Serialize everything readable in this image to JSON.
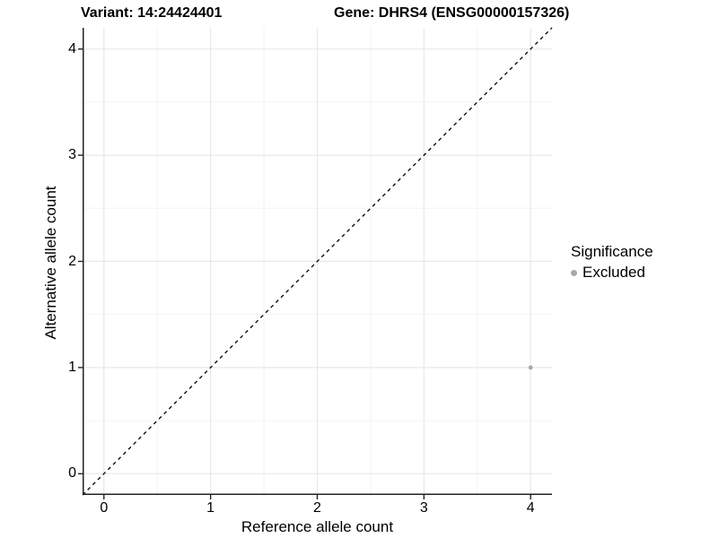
{
  "titles": {
    "variant": "Variant: 14:24424401",
    "gene": "Gene: DHRS4 (ENSG00000157326)"
  },
  "axes": {
    "x_label": "Reference allele count",
    "y_label": "Alternative allele count"
  },
  "legend": {
    "title": "Significance",
    "items": [
      {
        "label": "Excluded",
        "color": "#a9a9a9"
      }
    ]
  },
  "colors": {
    "point": "#a9a9a9",
    "grid_major": "#e8e8e8",
    "grid_minor": "#f3f3f3",
    "axis_line": "#222222",
    "dashed_line": "#000000",
    "tick_mark": "#222222"
  },
  "chart_data": {
    "type": "scatter",
    "title": "Variant: 14:24424401 — Gene: DHRS4 (ENSG00000157326)",
    "xlabel": "Reference allele count",
    "ylabel": "Alternative allele count",
    "xlim": [
      -0.2,
      4.2
    ],
    "ylim": [
      -0.2,
      4.2
    ],
    "x_ticks": [
      0,
      1,
      2,
      3,
      4
    ],
    "y_ticks": [
      0,
      1,
      2,
      3,
      4
    ],
    "x_minor_ticks": [
      0.5,
      1.5,
      2.5,
      3.5
    ],
    "y_minor_ticks": [
      0.5,
      1.5,
      2.5,
      3.5
    ],
    "grid": true,
    "legend_position": "right",
    "reference_line": {
      "type": "identity",
      "slope": 1,
      "intercept": 0,
      "style": "dashed",
      "color": "#000000"
    },
    "series": [
      {
        "name": "Excluded",
        "color": "#a9a9a9",
        "points": [
          {
            "x": 4,
            "y": 1
          }
        ]
      }
    ]
  }
}
